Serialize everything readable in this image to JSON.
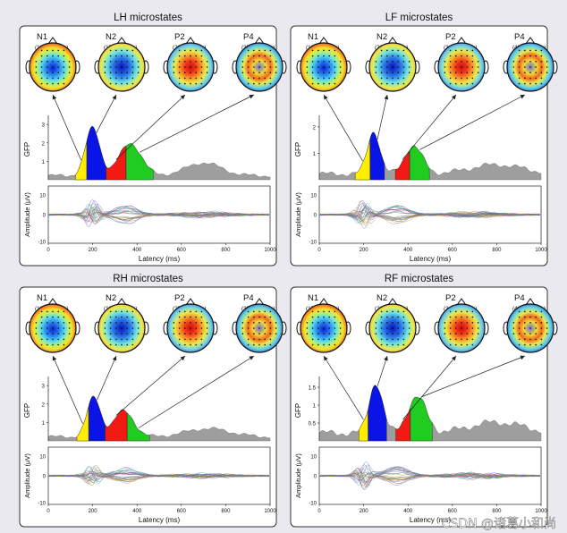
{
  "colors": {
    "n1": "#ffee00",
    "n2": "#0a14e6",
    "p2": "#f21b14",
    "p4": "#1fcc1f",
    "gfp_gray": "#9e9e9e",
    "panel_border": "#333333"
  },
  "axis": {
    "latency_label": "Latency (ms)",
    "amplitude_label": "Amplitude (µV)",
    "gfp_label": "GFP",
    "x_ticks": [
      "0",
      "200",
      "400",
      "600",
      "800",
      "1000"
    ],
    "amp_ticks": [
      "10",
      "0",
      "-10"
    ]
  },
  "panels": [
    {
      "title": "LH microstates",
      "states": [
        {
          "name": "N1",
          "range": "(123-173 ms)"
        },
        {
          "name": "N2",
          "range": "(174-260 ms)"
        },
        {
          "name": "P2",
          "range": "(261-350 ms)"
        },
        {
          "name": "P4",
          "range": "(351-473 ms)"
        }
      ],
      "gfp_ticks": [
        "3",
        "2",
        "1"
      ],
      "gfp_max": 3.3,
      "segments_ms": [
        [
          123,
          173
        ],
        [
          174,
          260
        ],
        [
          261,
          350
        ],
        [
          351,
          473
        ]
      ],
      "peaks": [
        {
          "t": 200,
          "a": 2.6,
          "s": 32
        },
        {
          "t": 370,
          "a": 1.75,
          "s": 50
        }
      ],
      "late_bump": {
        "t": 700,
        "a": 0.7,
        "s": 80
      }
    },
    {
      "title": "LF microstates",
      "states": [
        {
          "name": "N1",
          "range": "(162-229 ms)"
        },
        {
          "name": "N2",
          "range": "(230-294 ms)"
        },
        {
          "name": "P2",
          "range": "(343-407 ms)"
        },
        {
          "name": "P4",
          "range": "(408-497 ms)"
        }
      ],
      "gfp_ticks": [
        "2",
        "1"
      ],
      "gfp_max": 2.3,
      "segments_ms": [
        [
          162,
          229
        ],
        [
          230,
          294
        ],
        [
          343,
          407
        ],
        [
          408,
          497
        ]
      ],
      "peaks": [
        {
          "t": 245,
          "a": 1.6,
          "s": 28
        },
        {
          "t": 425,
          "a": 1.05,
          "s": 40
        }
      ],
      "late_bump": {
        "t": 800,
        "a": 0.35,
        "s": 120
      }
    },
    {
      "title": "RH microstates",
      "states": [
        {
          "name": "N1",
          "range": "(129-182 ms)"
        },
        {
          "name": "N2",
          "range": "(183-256 ms)"
        },
        {
          "name": "P2",
          "range": "(257-355 ms)"
        },
        {
          "name": "P4",
          "range": "(356-457 ms)"
        }
      ],
      "gfp_ticks": [
        "3",
        "2",
        "1"
      ],
      "gfp_max": 3.3,
      "segments_ms": [
        [
          129,
          182
        ],
        [
          183,
          256
        ],
        [
          257,
          355
        ],
        [
          356,
          457
        ]
      ],
      "peaks": [
        {
          "t": 205,
          "a": 2.15,
          "s": 30
        },
        {
          "t": 340,
          "a": 1.4,
          "s": 45
        }
      ],
      "late_bump": {
        "t": 720,
        "a": 0.45,
        "s": 100
      }
    },
    {
      "title": "RF microstates",
      "states": [
        {
          "name": "N1",
          "range": "(179-220 ms)"
        },
        {
          "name": "N2",
          "range": "(221-304 ms)"
        },
        {
          "name": "P2",
          "range": "(345-410 ms)"
        },
        {
          "name": "P4",
          "range": "(411-510 ms)"
        }
      ],
      "gfp_ticks": [
        "1.5",
        "1",
        "0.5"
      ],
      "gfp_max": 1.7,
      "segments_ms": [
        [
          179,
          220
        ],
        [
          221,
          304
        ],
        [
          345,
          410
        ],
        [
          411,
          510
        ]
      ],
      "peaks": [
        {
          "t": 255,
          "a": 1.4,
          "s": 30
        },
        {
          "t": 440,
          "a": 1.0,
          "s": 42
        }
      ],
      "late_bump": {
        "t": 800,
        "a": 0.3,
        "s": 120
      }
    }
  ],
  "watermark": "CSDN @诸葛小和尚"
}
